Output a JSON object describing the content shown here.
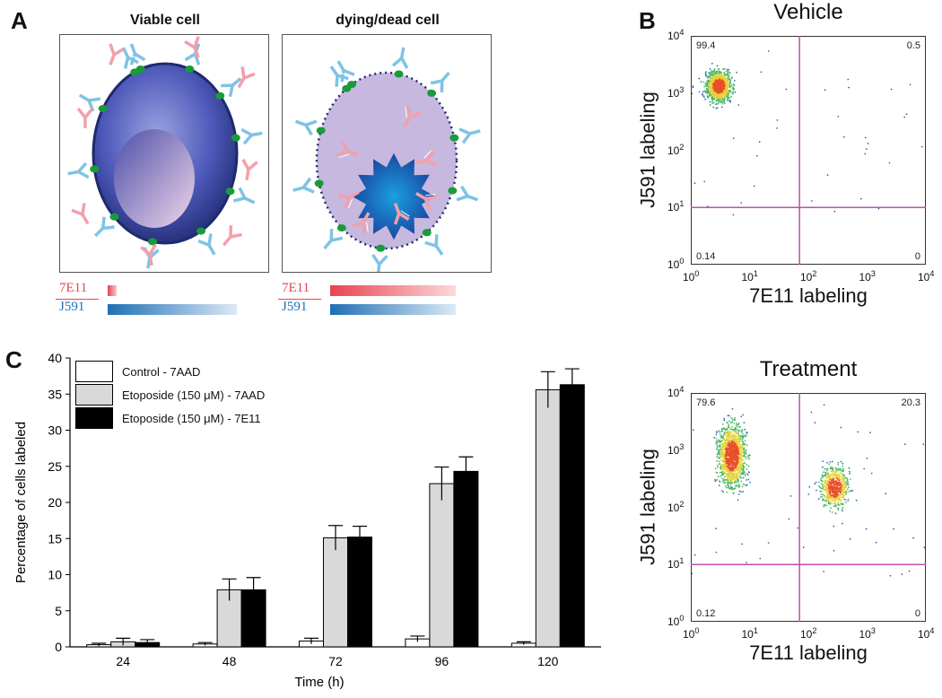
{
  "panel_A": {
    "letter": "A",
    "viable_title": "Viable cell",
    "dead_title": "dying/dead cell",
    "label_7e11": "7E11",
    "label_j591": "J591",
    "colors": {
      "red": "#e8424f",
      "blue": "#1f6fb5",
      "membrane": "#1e2a6e",
      "green": "#1a9b3a"
    }
  },
  "panel_B": {
    "letter": "B",
    "plots": [
      {
        "title": "Vehicle",
        "ul": "99.4",
        "ur": "0.5",
        "ll": "0.14",
        "lr": "0",
        "xlabel": "7E11 labeling",
        "ylabel": "J591 labeling"
      },
      {
        "title": "Treatment",
        "ul": "79.6",
        "ur": "20.3",
        "ll": "0.12",
        "lr": "0",
        "xlabel": "7E11 labeling",
        "ylabel": "J591 labeling"
      }
    ],
    "ticks": [
      "10",
      "10",
      "10",
      "10",
      "10"
    ],
    "exps": [
      "0",
      "1",
      "2",
      "3",
      "4"
    ]
  },
  "panel_C": {
    "letter": "C"
  },
  "chart_data": {
    "type": "bar",
    "title": "",
    "xlabel": "Time (h)",
    "ylabel": "Percentage of cells labeled",
    "categories": [
      "24",
      "48",
      "72",
      "96",
      "120"
    ],
    "ylim": [
      0,
      40
    ],
    "yticks": [
      0,
      5,
      10,
      15,
      20,
      25,
      30,
      35,
      40
    ],
    "series": [
      {
        "name": "Control - 7AAD",
        "color": "#ffffff",
        "values": [
          0.3,
          0.4,
          0.8,
          1.1,
          0.5
        ],
        "errors": [
          0.2,
          0.2,
          0.4,
          0.4,
          0.2
        ]
      },
      {
        "name": "Etoposide (150 μM) - 7AAD",
        "color": "#d9d9d9",
        "values": [
          0.7,
          7.9,
          15.1,
          22.6,
          35.6
        ],
        "errors": [
          0.5,
          1.5,
          1.7,
          2.3,
          2.5
        ]
      },
      {
        "name": "Etoposide (150 μM) - 7E11",
        "color": "#000000",
        "values": [
          0.6,
          7.9,
          15.2,
          24.3,
          36.3
        ],
        "errors": [
          0.4,
          1.7,
          1.5,
          2.0,
          2.2
        ]
      }
    ]
  }
}
